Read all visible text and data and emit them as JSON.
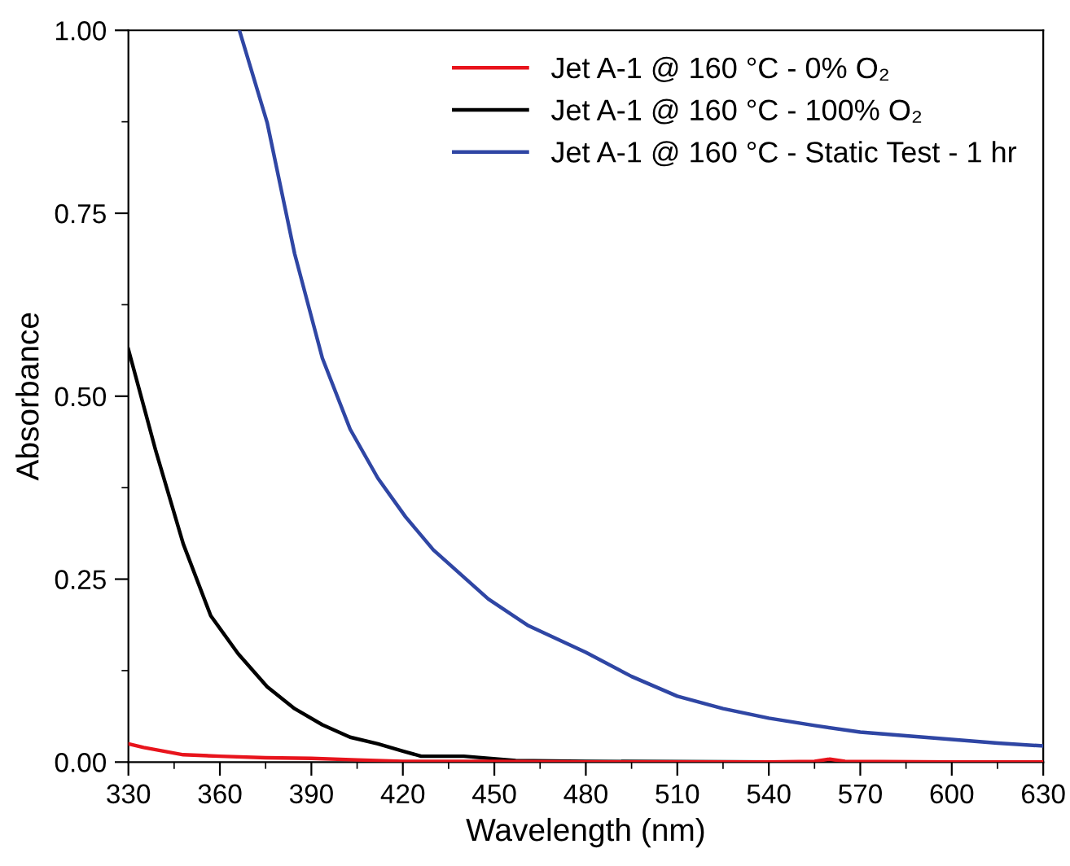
{
  "chart_data": {
    "type": "line",
    "xlabel": "Wavelength (nm)",
    "ylabel": "Absorbance",
    "xlim": [
      330,
      630
    ],
    "ylim": [
      0,
      1
    ],
    "xticks": [
      330,
      360,
      390,
      420,
      450,
      480,
      510,
      540,
      570,
      600,
      630
    ],
    "yticks": [
      {
        "value": 0,
        "label": "0.00"
      },
      {
        "value": 0.25,
        "label": "0.25"
      },
      {
        "value": 0.5,
        "label": "0.50"
      },
      {
        "value": 0.75,
        "label": "0.75"
      },
      {
        "value": 1,
        "label": "1.00"
      }
    ],
    "grid": false,
    "legend": "top right",
    "marker": "none",
    "line_style": "solid",
    "series": [
      {
        "name": "Jet A-1 @ 160 °C - 0% O₂",
        "color": "#e8141c",
        "x": [
          330,
          335,
          348,
          360,
          375,
          390,
          405,
          420,
          450,
          480,
          510,
          540,
          555,
          560,
          565,
          600,
          630
        ],
        "values": [
          0.025,
          0.02,
          0.01,
          0.008,
          0.006,
          0.005,
          0.003,
          0.001,
          0.001,
          0.0,
          0.0,
          0.0,
          0.001,
          0.004,
          0.001,
          0.0,
          0.0
        ]
      },
      {
        "name": "Jet A-1 @ 160 °C - 100% O₂",
        "color": "#000000",
        "x": [
          330,
          339,
          348,
          357,
          366,
          375.5,
          384.5,
          393.6,
          402.7,
          411.8,
          420,
          426,
          440,
          457,
          480,
          540,
          630
        ],
        "values": [
          0.564,
          0.425,
          0.298,
          0.2,
          0.148,
          0.103,
          0.073,
          0.051,
          0.034,
          0.025,
          0.015,
          0.008,
          0.008,
          0.002,
          0.001,
          0.0,
          0.0
        ]
      },
      {
        "name": "Jet A-1 @ 160 °C - Static Test - 1 hr",
        "color": "#2f46a4",
        "x": [
          366.4,
          375.5,
          384.5,
          393.6,
          402.7,
          411.8,
          420.9,
          430,
          448,
          460.9,
          480,
          495,
          510,
          525,
          540,
          555,
          570,
          585,
          600,
          615,
          630
        ],
        "values": [
          1.0,
          0.874,
          0.695,
          0.552,
          0.455,
          0.388,
          0.335,
          0.29,
          0.223,
          0.187,
          0.15,
          0.117,
          0.09,
          0.073,
          0.06,
          0.05,
          0.041,
          0.036,
          0.031,
          0.026,
          0.022
        ]
      }
    ]
  }
}
